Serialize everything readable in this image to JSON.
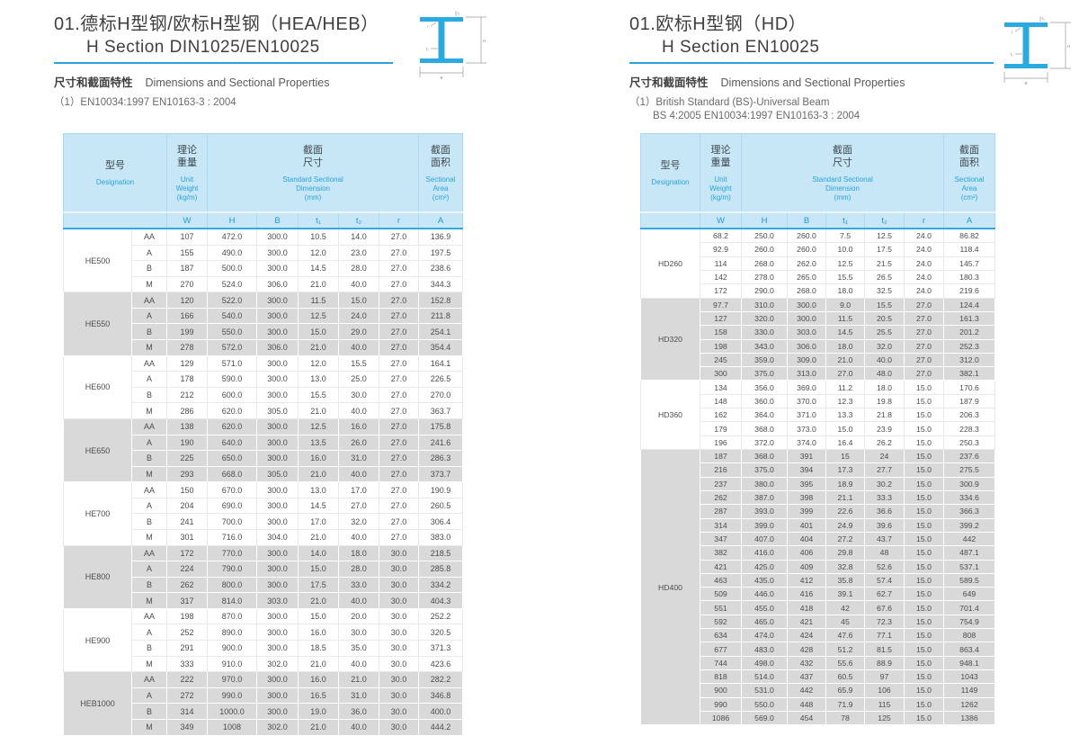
{
  "colors": {
    "accent_blue": "#29a3dc",
    "beam_fill": "#29abe2",
    "header_bg": "#c7e7f6",
    "band_gray": "#d9d9d9",
    "title_text": "#3f3f3f",
    "body_text": "#4c4c4c"
  },
  "diagram_labels": {
    "t2": "t₂",
    "r": "r",
    "t1": "t₁",
    "H": "H",
    "B": "B"
  },
  "left": {
    "title_cn": "01.德标H型钢/欧标H型钢（HEA/HEB）",
    "title_en": "H Section DIN1025/EN10025",
    "subtitle_cn": "尺寸和截面特性",
    "subtitle_en": "Dimensions and Sectional Properties",
    "note_line1": "（1）EN10034:1997  EN10163-3 : 2004",
    "note_line2": "",
    "table": {
      "header": {
        "designation_cn": "型号",
        "designation_en": "Designation",
        "weight_cn": "理论\n重量",
        "weight_en": "Unit\nWeight\n(kg/m)",
        "dimension_cn": "截面\n尺寸",
        "dimension_en": "Standard Sectional\nDimension\n(mm)",
        "area_cn": "截面\n面积",
        "area_en": "Sectional\nArea\n(cm²)",
        "sub": [
          "W",
          "H",
          "B",
          "t₁",
          "t₂",
          "r",
          "A"
        ]
      },
      "groups": [
        {
          "name": "HE500",
          "rows": [
            [
              "AA",
              "107",
              "472.0",
              "300.0",
              "10.5",
              "14.0",
              "27.0",
              "136.9"
            ],
            [
              "A",
              "155",
              "490.0",
              "300.0",
              "12.0",
              "23.0",
              "27.0",
              "197.5"
            ],
            [
              "B",
              "187",
              "500.0",
              "300.0",
              "14.5",
              "28.0",
              "27.0",
              "238.6"
            ],
            [
              "M",
              "270",
              "524.0",
              "306.0",
              "21.0",
              "40.0",
              "27.0",
              "344.3"
            ]
          ]
        },
        {
          "name": "HE550",
          "rows": [
            [
              "AA",
              "120",
              "522.0",
              "300.0",
              "11.5",
              "15.0",
              "27.0",
              "152.8"
            ],
            [
              "A",
              "166",
              "540.0",
              "300.0",
              "12.5",
              "24.0",
              "27.0",
              "211.8"
            ],
            [
              "B",
              "199",
              "550.0",
              "300.0",
              "15.0",
              "29.0",
              "27.0",
              "254.1"
            ],
            [
              "M",
              "278",
              "572.0",
              "306.0",
              "21.0",
              "40.0",
              "27.0",
              "354.4"
            ]
          ]
        },
        {
          "name": "HE600",
          "rows": [
            [
              "AA",
              "129",
              "571.0",
              "300.0",
              "12.0",
              "15.5",
              "27.0",
              "164.1"
            ],
            [
              "A",
              "178",
              "590.0",
              "300.0",
              "13.0",
              "25.0",
              "27.0",
              "226.5"
            ],
            [
              "B",
              "212",
              "600.0",
              "300.0",
              "15.5",
              "30.0",
              "27.0",
              "270.0"
            ],
            [
              "M",
              "286",
              "620.0",
              "305.0",
              "21.0",
              "40.0",
              "27.0",
              "363.7"
            ]
          ]
        },
        {
          "name": "HE650",
          "rows": [
            [
              "AA",
              "138",
              "620.0",
              "300.0",
              "12.5",
              "16.0",
              "27.0",
              "175.8"
            ],
            [
              "A",
              "190",
              "640.0",
              "300.0",
              "13.5",
              "26.0",
              "27.0",
              "241.6"
            ],
            [
              "B",
              "225",
              "650.0",
              "300.0",
              "16.0",
              "31.0",
              "27.0",
              "286.3"
            ],
            [
              "M",
              "293",
              "668.0",
              "305.0",
              "21.0",
              "40.0",
              "27.0",
              "373.7"
            ]
          ]
        },
        {
          "name": "HE700",
          "rows": [
            [
              "AA",
              "150",
              "670.0",
              "300.0",
              "13.0",
              "17.0",
              "27.0",
              "190.9"
            ],
            [
              "A",
              "204",
              "690.0",
              "300.0",
              "14.5",
              "27.0",
              "27.0",
              "260.5"
            ],
            [
              "B",
              "241",
              "700.0",
              "300.0",
              "17.0",
              "32.0",
              "27.0",
              "306.4"
            ],
            [
              "M",
              "301",
              "716.0",
              "304.0",
              "21.0",
              "40.0",
              "27.0",
              "383.0"
            ]
          ]
        },
        {
          "name": "HE800",
          "rows": [
            [
              "AA",
              "172",
              "770.0",
              "300.0",
              "14.0",
              "18.0",
              "30.0",
              "218.5"
            ],
            [
              "A",
              "224",
              "790.0",
              "300.0",
              "15.0",
              "28.0",
              "30.0",
              "285.8"
            ],
            [
              "B",
              "262",
              "800.0",
              "300.0",
              "17.5",
              "33.0",
              "30.0",
              "334.2"
            ],
            [
              "M",
              "317",
              "814.0",
              "303.0",
              "21.0",
              "40.0",
              "30.0",
              "404.3"
            ]
          ]
        },
        {
          "name": "HE900",
          "rows": [
            [
              "AA",
              "198",
              "870.0",
              "300.0",
              "15.0",
              "20.0",
              "30.0",
              "252.2"
            ],
            [
              "A",
              "252",
              "890.0",
              "300.0",
              "16.0",
              "30.0",
              "30.0",
              "320.5"
            ],
            [
              "B",
              "291",
              "900.0",
              "300.0",
              "18.5",
              "35.0",
              "30.0",
              "371.3"
            ],
            [
              "M",
              "333",
              "910.0",
              "302.0",
              "21.0",
              "40.0",
              "30.0",
              "423.6"
            ]
          ]
        },
        {
          "name": "HEB1000",
          "rows": [
            [
              "AA",
              "222",
              "970.0",
              "300.0",
              "16.0",
              "21.0",
              "30.0",
              "282.2"
            ],
            [
              "A",
              "272",
              "990.0",
              "300.0",
              "16.5",
              "31.0",
              "30.0",
              "346.8"
            ],
            [
              "B",
              "314",
              "1000.0",
              "300.0",
              "19.0",
              "36.0",
              "30.0",
              "400.0"
            ],
            [
              "M",
              "349",
              "1008",
              "302.0",
              "21.0",
              "40.0",
              "30.0",
              "444.2"
            ]
          ]
        }
      ]
    }
  },
  "right": {
    "title_cn": "01.欧标H型钢（HD）",
    "title_en": "H Section  EN10025",
    "subtitle_cn": "尺寸和截面特性",
    "subtitle_en": "Dimensions and Sectional Properties",
    "note_line1": "（1）British Standard (BS)-Universal Beam",
    "note_line2": "BS 4:2005  EN10034:1997  EN10163-3 : 2004",
    "table": {
      "header": {
        "designation_cn": "型号",
        "designation_en": "Designation",
        "weight_cn": "理论\n重量",
        "weight_en": "Unit\nWeight\n(kg/m)",
        "dimension_cn": "截面\n尺寸",
        "dimension_en": "Standard Sectional\nDimension\n(mm)",
        "area_cn": "截面\n面积",
        "area_en": "Sectional\nArea\n(cm²)",
        "sub": [
          "W",
          "H",
          "B",
          "t₁",
          "t₂",
          "r",
          "A"
        ]
      },
      "groups": [
        {
          "name": "HD260",
          "rows": [
            [
              "68.2",
              "250.0",
              "260.0",
              "7.5",
              "12.5",
              "24.0",
              "86.82"
            ],
            [
              "92.9",
              "260.0",
              "260.0",
              "10.0",
              "17.5",
              "24.0",
              "118.4"
            ],
            [
              "114",
              "268.0",
              "262.0",
              "12.5",
              "21.5",
              "24.0",
              "145.7"
            ],
            [
              "142",
              "278.0",
              "265.0",
              "15.5",
              "26.5",
              "24.0",
              "180.3"
            ],
            [
              "172",
              "290.0",
              "268.0",
              "18.0",
              "32.5",
              "24.0",
              "219.6"
            ]
          ]
        },
        {
          "name": "HD320",
          "rows": [
            [
              "97.7",
              "310.0",
              "300.0",
              "9.0",
              "15.5",
              "27.0",
              "124.4"
            ],
            [
              "127",
              "320.0",
              "300.0",
              "11.5",
              "20.5",
              "27.0",
              "161.3"
            ],
            [
              "158",
              "330.0",
              "303.0",
              "14.5",
              "25.5",
              "27.0",
              "201.2"
            ],
            [
              "198",
              "343.0",
              "306.0",
              "18.0",
              "32.0",
              "27.0",
              "252.3"
            ],
            [
              "245",
              "359.0",
              "309.0",
              "21.0",
              "40.0",
              "27.0",
              "312.0"
            ],
            [
              "300",
              "375.0",
              "313.0",
              "27.0",
              "48.0",
              "27.0",
              "382.1"
            ]
          ]
        },
        {
          "name": "HD360",
          "rows": [
            [
              "134",
              "356.0",
              "369.0",
              "11.2",
              "18.0",
              "15.0",
              "170.6"
            ],
            [
              "148",
              "360.0",
              "370.0",
              "12.3",
              "19.8",
              "15.0",
              "187.9"
            ],
            [
              "162",
              "364.0",
              "371.0",
              "13.3",
              "21.8",
              "15.0",
              "206.3"
            ],
            [
              "179",
              "368.0",
              "373.0",
              "15.0",
              "23.9",
              "15.0",
              "228.3"
            ],
            [
              "196",
              "372.0",
              "374.0",
              "16.4",
              "26.2",
              "15.0",
              "250.3"
            ]
          ]
        },
        {
          "name": "HD400",
          "rows": [
            [
              "187",
              "368.0",
              "391",
              "15",
              "24",
              "15.0",
              "237.6"
            ],
            [
              "216",
              "375.0",
              "394",
              "17.3",
              "27.7",
              "15.0",
              "275.5"
            ],
            [
              "237",
              "380.0",
              "395",
              "18.9",
              "30.2",
              "15.0",
              "300.9"
            ],
            [
              "262",
              "387.0",
              "398",
              "21.1",
              "33.3",
              "15.0",
              "334.6"
            ],
            [
              "287",
              "393.0",
              "399",
              "22.6",
              "36.6",
              "15.0",
              "366.3"
            ],
            [
              "314",
              "399.0",
              "401",
              "24.9",
              "39.6",
              "15.0",
              "399.2"
            ],
            [
              "347",
              "407.0",
              "404",
              "27.2",
              "43.7",
              "15.0",
              "442"
            ],
            [
              "382",
              "416.0",
              "406",
              "29.8",
              "48",
              "15.0",
              "487.1"
            ],
            [
              "421",
              "425.0",
              "409",
              "32.8",
              "52.6",
              "15.0",
              "537.1"
            ],
            [
              "463",
              "435.0",
              "412",
              "35.8",
              "57.4",
              "15.0",
              "589.5"
            ],
            [
              "509",
              "446.0",
              "416",
              "39.1",
              "62.7",
              "15.0",
              "649"
            ],
            [
              "551",
              "455.0",
              "418",
              "42",
              "67.6",
              "15.0",
              "701.4"
            ],
            [
              "592",
              "465.0",
              "421",
              "45",
              "72.3",
              "15.0",
              "754.9"
            ],
            [
              "634",
              "474.0",
              "424",
              "47.6",
              "77.1",
              "15.0",
              "808"
            ],
            [
              "677",
              "483.0",
              "428",
              "51.2",
              "81.5",
              "15.0",
              "863.4"
            ],
            [
              "744",
              "498.0",
              "432",
              "55.6",
              "88.9",
              "15.0",
              "948.1"
            ],
            [
              "818",
              "514.0",
              "437",
              "60.5",
              "97",
              "15.0",
              "1043"
            ],
            [
              "900",
              "531.0",
              "442",
              "65.9",
              "106",
              "15.0",
              "1149"
            ],
            [
              "990",
              "550.0",
              "448",
              "71.9",
              "115",
              "15.0",
              "1262"
            ],
            [
              "1086",
              "569.0",
              "454",
              "78",
              "125",
              "15.0",
              "1386"
            ]
          ]
        }
      ]
    }
  }
}
